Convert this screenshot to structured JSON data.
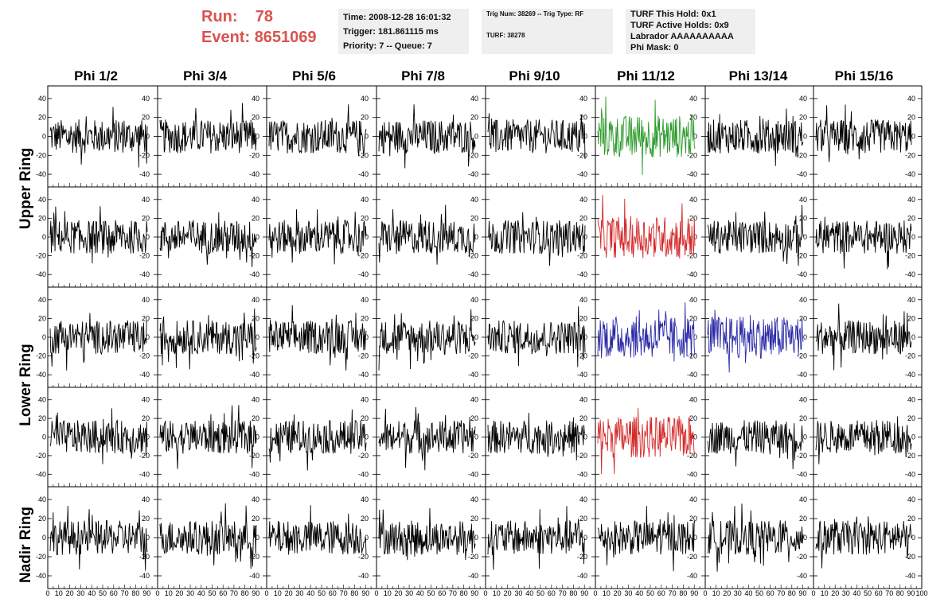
{
  "run": {
    "run_label": "Run:",
    "run_value": "78",
    "event_label": "Event:",
    "event_value": "8651069"
  },
  "header_info": {
    "time": "Time: 2008-12-28 16:01:32",
    "trigger": "Trigger: 181.861115 ms",
    "priority": "Priority: 7 -- Queue: 7"
  },
  "trig_info": {
    "trig": "Trig Num: 38269 -- Trig Type: RF",
    "turf": "TURF: 38278"
  },
  "turf_info": {
    "this_hold": "TURF This Hold: 0x1",
    "active_holds": "TURF Active Holds: 0x9",
    "labrador": "Labrador AAAAAAAAAA",
    "phi_mask": "Phi Mask: 0"
  },
  "columns": [
    "Phi 1/2",
    "Phi 3/4",
    "Phi 5/6",
    "Phi 7/8",
    "Phi 9/10",
    "Phi 11/12",
    "Phi 13/14",
    "Phi 15/16"
  ],
  "rows": [
    "Upper Ring",
    "Lower Ring",
    "Nadir Ring"
  ],
  "colors": {
    "run_text": "#d9534f",
    "trace_default": "#000000",
    "trace_green": "#2a9a2a",
    "trace_red": "#d42a2a",
    "trace_blue": "#2a2aa8",
    "info_bg": "#efefef"
  },
  "chart_data": {
    "type": "line",
    "panel_rows": 5,
    "panel_cols": 8,
    "ylim": [
      -50,
      50
    ],
    "xlim": [
      0,
      100
    ],
    "y_ticks": [
      -40,
      -20,
      0,
      20,
      40
    ],
    "x_ticks": [
      0,
      10,
      20,
      30,
      40,
      50,
      60,
      70,
      80,
      90,
      100
    ],
    "x_tick_labels_last": "0 10 20 30 40 50 60 70 80 90100",
    "x_tick_labels": "0 10 20 30 40 50 60 70 80 90 10",
    "highlighted_panels": [
      {
        "row": 0,
        "col": 5,
        "color": "green"
      },
      {
        "row": 1,
        "col": 5,
        "color": "red"
      },
      {
        "row": 2,
        "col": 5,
        "color": "blue"
      },
      {
        "row": 2,
        "col": 6,
        "color": "blue"
      },
      {
        "row": 3,
        "col": 5,
        "color": "red"
      }
    ],
    "note_amplitude": "noise waveforms approx ±20, peaks up to ±45"
  }
}
